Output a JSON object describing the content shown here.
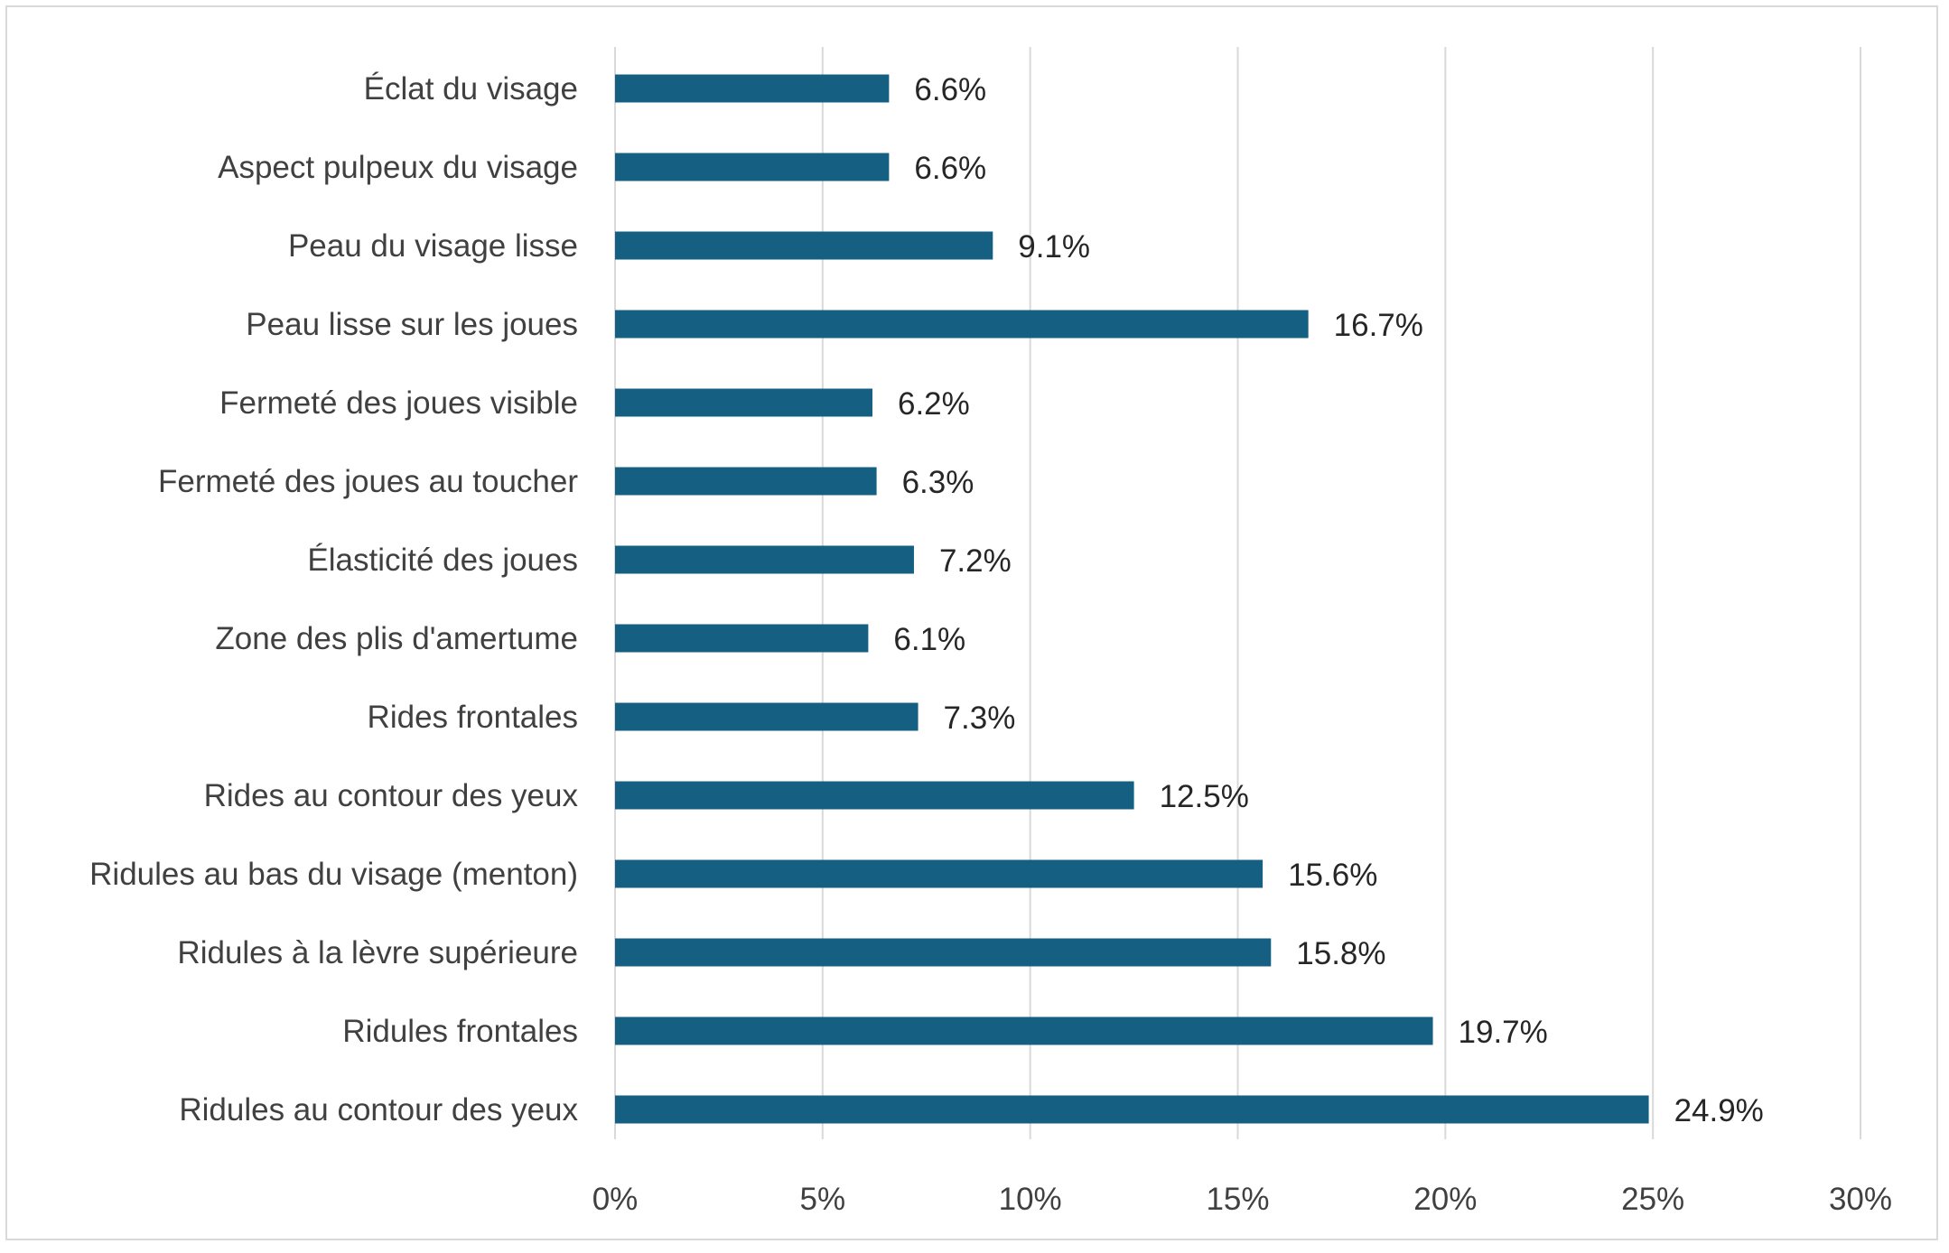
{
  "chart_data": {
    "type": "bar",
    "orientation": "horizontal",
    "categories": [
      "Éclat du visage",
      "Aspect pulpeux du visage",
      "Peau du visage lisse",
      "Peau lisse sur les joues",
      "Fermeté des joues visible",
      "Fermeté des joues au toucher",
      "Élasticité des joues",
      "Zone des plis d'amertume",
      "Rides frontales",
      "Rides au contour des yeux",
      "Ridules au bas du visage (menton)",
      "Ridules à la lèvre supérieure",
      "Ridules frontales",
      "Ridules au contour des yeux"
    ],
    "values": [
      6.6,
      6.6,
      9.1,
      16.7,
      6.2,
      6.3,
      7.2,
      6.1,
      7.3,
      12.5,
      15.6,
      15.8,
      19.7,
      24.9
    ],
    "data_labels": [
      "6.6%",
      "6.6%",
      "9.1%",
      "16.7%",
      "6.2%",
      "6.3%",
      "7.2%",
      "6.1%",
      "7.3%",
      "12.5%",
      "15.6%",
      "15.8%",
      "19.7%",
      "24.9%"
    ],
    "x_ticks": [
      0,
      5,
      10,
      15,
      20,
      25,
      30
    ],
    "x_tick_labels": [
      "0%",
      "5%",
      "10%",
      "15%",
      "20%",
      "25%",
      "30%"
    ],
    "xlim": [
      0,
      30
    ],
    "grid": "vertical",
    "legend": "none",
    "title": "",
    "xlabel": "",
    "ylabel": "",
    "colors": {
      "bar": "#156082",
      "grid": "#d9d9d9",
      "text": "#404040",
      "frame": "#d9d9d9"
    }
  }
}
